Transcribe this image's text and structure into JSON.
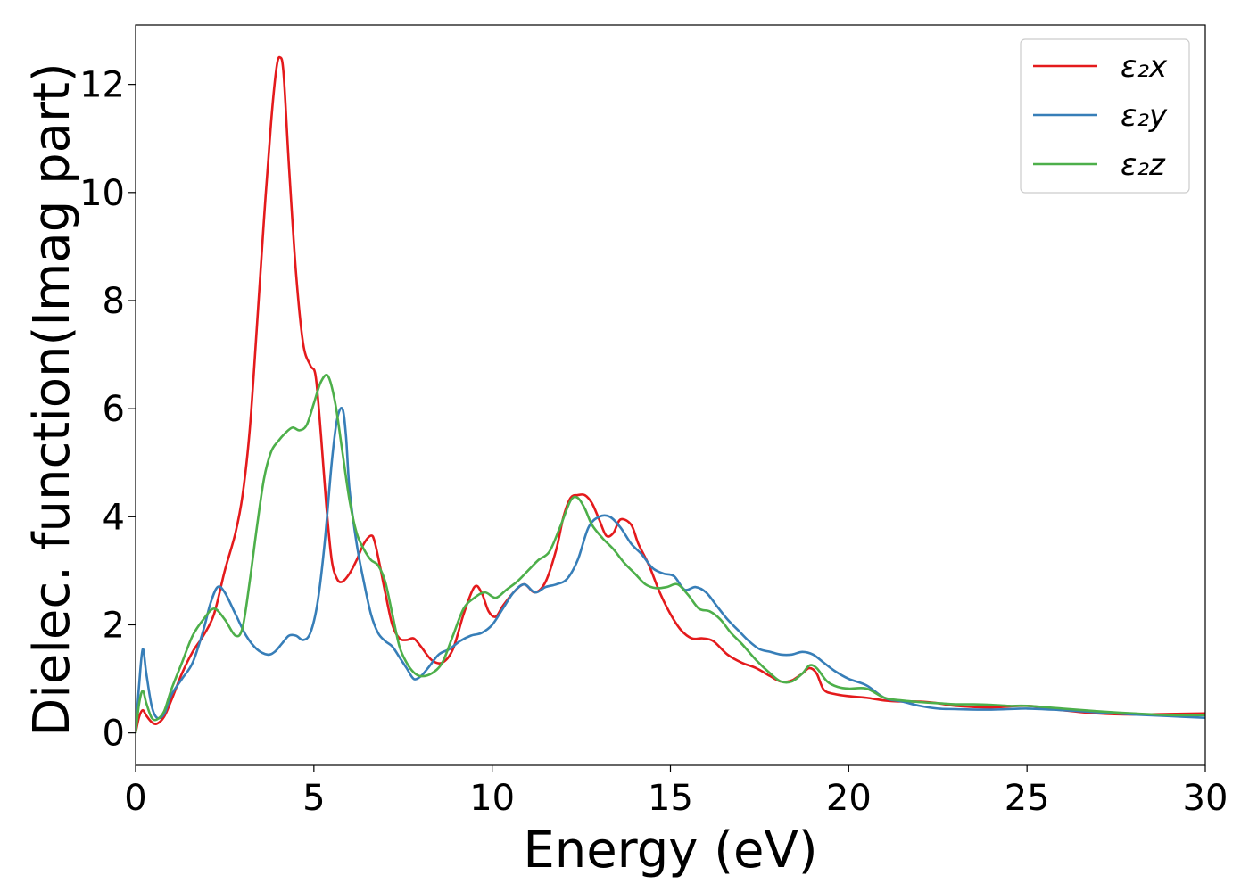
{
  "chart_data": {
    "type": "line",
    "title": "",
    "xlabel": "Energy (eV)",
    "ylabel": "Dielec. function(Imag part)",
    "xlim": [
      0,
      30
    ],
    "ylim": [
      -0.6,
      13.1
    ],
    "xticks": [
      0,
      5,
      10,
      15,
      20,
      25,
      30
    ],
    "yticks": [
      0,
      2,
      4,
      6,
      8,
      10,
      12
    ],
    "grid": false,
    "legend": "top-right",
    "series": [
      {
        "name": "ε₂x",
        "color": "#e41a1c",
        "x": [
          0,
          0.1,
          0.2,
          0.3,
          0.45,
          0.6,
          0.8,
          1.0,
          1.3,
          1.6,
          1.9,
          2.2,
          2.5,
          2.8,
          3.0,
          3.2,
          3.4,
          3.6,
          3.8,
          3.95,
          4.05,
          4.15,
          4.3,
          4.5,
          4.7,
          4.9,
          5.05,
          5.2,
          5.35,
          5.5,
          5.65,
          5.8,
          6.0,
          6.2,
          6.4,
          6.6,
          6.7,
          6.85,
          7.0,
          7.2,
          7.4,
          7.6,
          7.8,
          8.0,
          8.3,
          8.6,
          8.9,
          9.2,
          9.5,
          9.7,
          9.9,
          10.1,
          10.3,
          10.6,
          10.9,
          11.2,
          11.5,
          11.8,
          12.0,
          12.2,
          12.4,
          12.6,
          12.8,
          13.0,
          13.2,
          13.4,
          13.6,
          13.9,
          14.1,
          14.4,
          14.7,
          15.0,
          15.3,
          15.6,
          15.9,
          16.2,
          16.6,
          17.0,
          17.4,
          17.8,
          18.1,
          18.4,
          18.7,
          18.9,
          19.1,
          19.3,
          19.6,
          20.0,
          20.5,
          21.0,
          21.5,
          22.0,
          22.5,
          23.0,
          24.0,
          25.0,
          26.0,
          27.0,
          28.0,
          29.0,
          30.0
        ],
        "y": [
          0.0,
          0.3,
          0.42,
          0.32,
          0.2,
          0.17,
          0.3,
          0.6,
          1.1,
          1.5,
          1.8,
          2.2,
          3.0,
          3.7,
          4.4,
          5.6,
          7.5,
          9.5,
          11.3,
          12.3,
          12.5,
          12.2,
          10.5,
          8.5,
          7.2,
          6.8,
          6.6,
          5.5,
          4.2,
          3.2,
          2.85,
          2.8,
          2.95,
          3.2,
          3.5,
          3.65,
          3.55,
          3.1,
          2.6,
          2.0,
          1.75,
          1.72,
          1.75,
          1.6,
          1.35,
          1.3,
          1.55,
          2.2,
          2.7,
          2.6,
          2.25,
          2.15,
          2.35,
          2.6,
          2.75,
          2.6,
          2.8,
          3.4,
          4.0,
          4.35,
          4.4,
          4.4,
          4.25,
          3.95,
          3.65,
          3.7,
          3.95,
          3.85,
          3.5,
          3.1,
          2.6,
          2.2,
          1.9,
          1.75,
          1.75,
          1.7,
          1.45,
          1.3,
          1.2,
          1.05,
          0.95,
          0.97,
          1.1,
          1.2,
          1.1,
          0.8,
          0.72,
          0.68,
          0.65,
          0.6,
          0.58,
          0.58,
          0.55,
          0.5,
          0.47,
          0.5,
          0.42,
          0.36,
          0.34,
          0.35,
          0.36
        ]
      },
      {
        "name": "ε₂y",
        "color": "#377eb8",
        "x": [
          0,
          0.1,
          0.2,
          0.3,
          0.45,
          0.6,
          0.8,
          1.0,
          1.3,
          1.6,
          1.9,
          2.1,
          2.3,
          2.5,
          2.8,
          3.1,
          3.4,
          3.7,
          3.9,
          4.1,
          4.3,
          4.5,
          4.7,
          4.9,
          5.1,
          5.3,
          5.5,
          5.65,
          5.8,
          5.9,
          6.0,
          6.2,
          6.4,
          6.6,
          6.8,
          7.0,
          7.2,
          7.4,
          7.6,
          7.8,
          8.0,
          8.2,
          8.5,
          8.8,
          9.1,
          9.4,
          9.7,
          10.0,
          10.3,
          10.6,
          10.9,
          11.2,
          11.5,
          11.8,
          12.1,
          12.4,
          12.7,
          13.0,
          13.3,
          13.6,
          13.9,
          14.2,
          14.5,
          14.8,
          15.1,
          15.4,
          15.7,
          16.0,
          16.3,
          16.6,
          16.9,
          17.2,
          17.5,
          17.8,
          18.1,
          18.4,
          18.7,
          19.0,
          19.3,
          19.6,
          20.0,
          20.5,
          21.0,
          21.5,
          22.0,
          22.5,
          23.0,
          24.0,
          25.0,
          26.0,
          27.0,
          28.0,
          29.0,
          30.0
        ],
        "y": [
          0.0,
          0.9,
          1.55,
          1.1,
          0.5,
          0.28,
          0.35,
          0.7,
          1.0,
          1.3,
          1.9,
          2.4,
          2.7,
          2.6,
          2.2,
          1.8,
          1.55,
          1.45,
          1.5,
          1.65,
          1.8,
          1.8,
          1.72,
          1.85,
          2.4,
          3.5,
          5.0,
          5.8,
          6.0,
          5.5,
          4.5,
          3.5,
          2.8,
          2.2,
          1.85,
          1.7,
          1.6,
          1.4,
          1.2,
          1.0,
          1.05,
          1.2,
          1.45,
          1.55,
          1.7,
          1.8,
          1.85,
          2.0,
          2.3,
          2.6,
          2.75,
          2.6,
          2.7,
          2.75,
          2.85,
          3.2,
          3.8,
          4.0,
          4.0,
          3.8,
          3.5,
          3.3,
          3.05,
          2.95,
          2.9,
          2.65,
          2.7,
          2.6,
          2.35,
          2.1,
          1.9,
          1.7,
          1.55,
          1.5,
          1.45,
          1.45,
          1.5,
          1.45,
          1.3,
          1.15,
          1.0,
          0.88,
          0.65,
          0.58,
          0.5,
          0.45,
          0.44,
          0.43,
          0.45,
          0.42,
          0.38,
          0.34,
          0.31,
          0.28
        ]
      },
      {
        "name": "ε₂z",
        "color": "#4daf4a",
        "x": [
          0,
          0.1,
          0.2,
          0.3,
          0.45,
          0.6,
          0.8,
          1.0,
          1.3,
          1.6,
          1.9,
          2.2,
          2.5,
          2.8,
          3.0,
          3.2,
          3.4,
          3.6,
          3.8,
          4.0,
          4.2,
          4.4,
          4.6,
          4.8,
          5.0,
          5.2,
          5.4,
          5.6,
          5.8,
          6.0,
          6.2,
          6.4,
          6.6,
          6.8,
          7.0,
          7.2,
          7.4,
          7.6,
          7.8,
          8.0,
          8.3,
          8.6,
          8.9,
          9.2,
          9.5,
          9.8,
          10.1,
          10.4,
          10.7,
          11.0,
          11.3,
          11.6,
          11.9,
          12.2,
          12.4,
          12.6,
          12.8,
          13.1,
          13.4,
          13.7,
          14.0,
          14.3,
          14.6,
          14.9,
          15.2,
          15.5,
          15.8,
          16.1,
          16.4,
          16.7,
          17.0,
          17.4,
          17.8,
          18.1,
          18.4,
          18.7,
          18.9,
          19.1,
          19.4,
          19.7,
          20.0,
          20.5,
          21.0,
          21.5,
          22.0,
          22.5,
          23.0,
          23.5,
          24.0,
          24.5,
          25.0,
          26.0,
          27.0,
          28.0,
          29.0,
          30.0
        ],
        "y": [
          0.0,
          0.55,
          0.78,
          0.55,
          0.28,
          0.25,
          0.4,
          0.8,
          1.3,
          1.8,
          2.1,
          2.3,
          2.1,
          1.8,
          1.95,
          2.8,
          3.8,
          4.7,
          5.2,
          5.4,
          5.55,
          5.65,
          5.6,
          5.7,
          6.1,
          6.5,
          6.6,
          6.1,
          5.2,
          4.3,
          3.7,
          3.4,
          3.2,
          3.1,
          2.8,
          2.2,
          1.6,
          1.3,
          1.12,
          1.05,
          1.1,
          1.3,
          1.8,
          2.3,
          2.5,
          2.6,
          2.5,
          2.65,
          2.8,
          3.0,
          3.2,
          3.35,
          3.8,
          4.3,
          4.35,
          4.15,
          3.85,
          3.6,
          3.4,
          3.15,
          2.95,
          2.75,
          2.68,
          2.7,
          2.75,
          2.55,
          2.3,
          2.25,
          2.1,
          1.85,
          1.65,
          1.35,
          1.1,
          0.95,
          0.95,
          1.1,
          1.25,
          1.2,
          0.95,
          0.85,
          0.82,
          0.82,
          0.65,
          0.6,
          0.57,
          0.55,
          0.53,
          0.53,
          0.52,
          0.5,
          0.5,
          0.45,
          0.4,
          0.36,
          0.33,
          0.33
        ]
      }
    ]
  }
}
